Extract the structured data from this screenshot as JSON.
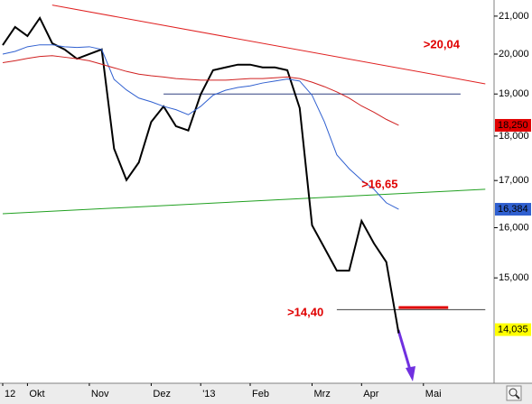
{
  "chart_data": {
    "type": "line",
    "log_scale": true,
    "grid": false,
    "categories": [
      "12",
      null,
      "Okt",
      null,
      null,
      null,
      null,
      "Nov",
      null,
      null,
      null,
      null,
      "Dez",
      null,
      null,
      null,
      "'13",
      null,
      null,
      null,
      "Feb",
      null,
      null,
      null,
      null,
      "Mrz",
      null,
      null,
      null,
      "Apr",
      null,
      null,
      null,
      null,
      "Mai",
      null,
      null,
      null,
      null,
      null
    ],
    "series": [
      {
        "color": "#000000",
        "width": 2,
        "values": [
          20230,
          20710,
          20470,
          20950,
          20280,
          20120,
          19880,
          20000,
          20120,
          17710,
          17010,
          17400,
          18330,
          18700,
          18230,
          18130,
          18990,
          19590,
          19660,
          19730,
          19730,
          19660,
          19660,
          19590,
          18660,
          16050,
          15590,
          15140,
          15140,
          16140,
          15680,
          15310,
          13970,
          null,
          null,
          null,
          null,
          null,
          null,
          null
        ]
      },
      {
        "color": "#3060d0",
        "width": 1,
        "values": [
          20000,
          20070,
          20190,
          20240,
          20240,
          20190,
          20170,
          20190,
          20120,
          19360,
          19100,
          18900,
          18810,
          18700,
          18620,
          18500,
          18700,
          18970,
          19090,
          19160,
          19200,
          19270,
          19320,
          19370,
          19320,
          18970,
          18330,
          17570,
          17260,
          17010,
          16810,
          16520,
          16384,
          null,
          null,
          null,
          null,
          null,
          null,
          null
        ]
      },
      {
        "color": "#d02020",
        "width": 1,
        "values": [
          19780,
          19830,
          19890,
          19940,
          19960,
          19920,
          19880,
          19830,
          19740,
          19650,
          19560,
          19490,
          19450,
          19420,
          19380,
          19360,
          19340,
          19340,
          19340,
          19360,
          19380,
          19380,
          19400,
          19420,
          19380,
          19290,
          19180,
          19050,
          18900,
          18710,
          18560,
          18390,
          18250,
          null,
          null,
          null,
          null,
          null,
          null,
          null
        ]
      }
    ],
    "ylim": [
      13100,
      21440
    ],
    "yticks": [
      {
        "value": 21000,
        "label": "21,000"
      },
      {
        "value": 20000,
        "label": "20,000"
      },
      {
        "value": 19000,
        "label": "19,000"
      },
      {
        "value": 18000,
        "label": "18,000"
      },
      {
        "value": 17000,
        "label": "17,000"
      },
      {
        "value": 16000,
        "label": "16,000"
      },
      {
        "value": 15000,
        "label": "15,000"
      }
    ],
    "value_tags": [
      {
        "value": 18250,
        "label": "18,250",
        "color": "#e00000",
        "text_color": "#ffffff"
      },
      {
        "value": 16384,
        "label": "16,384",
        "color": "#3060d0",
        "text_color": "#ffffff"
      },
      {
        "value": 14035,
        "label": "14,035",
        "color": "#ffff00",
        "text_color": "#000000"
      }
    ],
    "trendlines": [
      {
        "color": "#e02020",
        "from": 4,
        "to": 39,
        "values": [
          21300,
          19250
        ]
      },
      {
        "color": "#20a020",
        "from": 0,
        "to": 39,
        "values": [
          16290,
          16810
        ]
      },
      {
        "color": "#304080",
        "from": 13,
        "to": 37,
        "values": [
          19000,
          19000
        ]
      },
      {
        "color": "#404040",
        "from": 27,
        "to": 39,
        "values": [
          14400,
          14400
        ]
      },
      {
        "color": "#e00000",
        "from": 32,
        "to": 36,
        "values": [
          14440,
          14440
        ],
        "width": 3
      }
    ],
    "annotations": [
      {
        "text": ">20,04",
        "index": 34,
        "value": 20230
      },
      {
        "text": ">16,65",
        "index": 29,
        "value": 16900
      },
      {
        "text": ">14,40",
        "index": 23,
        "value": 14340
      }
    ]
  }
}
